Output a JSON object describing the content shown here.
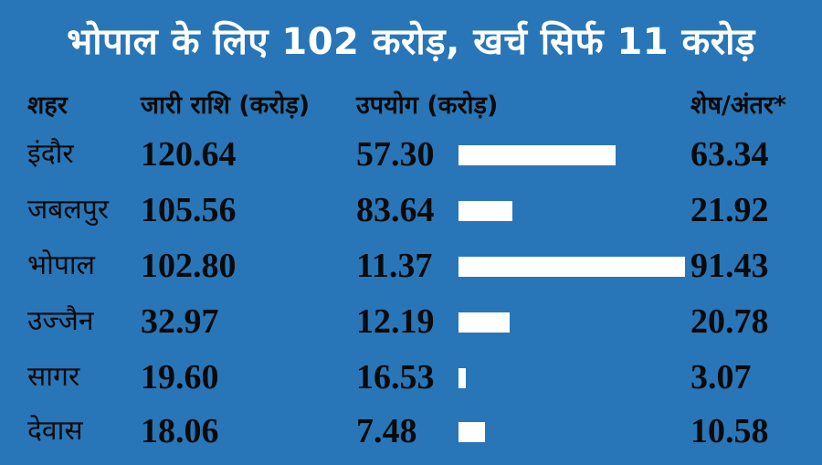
{
  "title": "भोपाल के लिए 102 करोड़, खर्च सिर्फ 11 करोड़",
  "headers": {
    "city": "शहर",
    "issued": "जारी राशि (करोड़)",
    "used": "उपयोग (करोड़)",
    "remaining": "शेष/अंतर*"
  },
  "colors": {
    "accent": "#2876b8",
    "text": "#0a0a0a",
    "bar": "#ffffff"
  },
  "rows": [
    {
      "city": "इंदौर",
      "issued": "120.64",
      "used": "57.30",
      "remaining": "63.34",
      "remaining_value": 63.34
    },
    {
      "city": "जबलपुर",
      "issued": "105.56",
      "used": "83.64",
      "remaining": "21.92",
      "remaining_value": 21.92
    },
    {
      "city": "भोपाल",
      "issued": "102.80",
      "used": "11.37",
      "remaining": "91.43",
      "remaining_value": 91.43
    },
    {
      "city": "उज्जैन",
      "issued": "32.97",
      "used": "12.19",
      "remaining": "20.78",
      "remaining_value": 20.78
    },
    {
      "city": "सागर",
      "issued": "19.60",
      "used": "16.53",
      "remaining": "3.07",
      "remaining_value": 3.07
    },
    {
      "city": "देवास",
      "issued": "18.06",
      "used": "7.48",
      "remaining": "10.58",
      "remaining_value": 10.58
    }
  ]
}
